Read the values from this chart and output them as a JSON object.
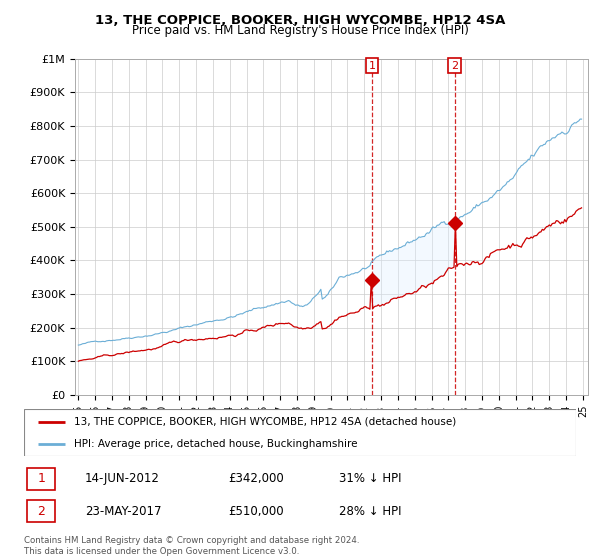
{
  "title1": "13, THE COPPICE, BOOKER, HIGH WYCOMBE, HP12 4SA",
  "title2": "Price paid vs. HM Land Registry's House Price Index (HPI)",
  "hpi_color": "#6baed6",
  "price_color": "#cc0000",
  "shade_color": "#ddeeff",
  "grid_color": "#cccccc",
  "transaction1_x": 2012.45,
  "transaction1_y": 342000,
  "transaction2_x": 2017.38,
  "transaction2_y": 510000,
  "legend_line1": "13, THE COPPICE, BOOKER, HIGH WYCOMBE, HP12 4SA (detached house)",
  "legend_line2": "HPI: Average price, detached house, Buckinghamshire",
  "footer": "Contains HM Land Registry data © Crown copyright and database right 2024.\nThis data is licensed under the Open Government Licence v3.0.",
  "row1_date": "14-JUN-2012",
  "row1_price": "£342,000",
  "row1_note": "31% ↓ HPI",
  "row2_date": "23-MAY-2017",
  "row2_price": "£510,000",
  "row2_note": "28% ↓ HPI",
  "ylim": [
    0,
    1000000
  ],
  "yticks": [
    0,
    100000,
    200000,
    300000,
    400000,
    500000,
    600000,
    700000,
    800000,
    900000,
    1000000
  ],
  "ytick_labels": [
    "£0",
    "£100K",
    "£200K",
    "£300K",
    "£400K",
    "£500K",
    "£600K",
    "£700K",
    "£800K",
    "£900K",
    "£1M"
  ],
  "xlim_left": 1994.8,
  "xlim_right": 2025.3
}
